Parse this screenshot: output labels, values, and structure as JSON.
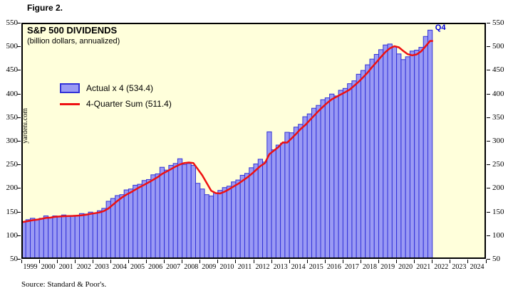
{
  "figure_label": "Figure 2.",
  "watermark": "yardeni.com",
  "annotation_last_bar": "Q4",
  "source": "Source: Standard & Poor's.",
  "legend": {
    "actual": {
      "label": "Actual x 4 (534.4)",
      "swatch": "box"
    },
    "four_quarter_sum": {
      "label": "4-Quarter Sum (511.4)",
      "swatch": "line"
    }
  },
  "colors": {
    "plot_background": "#ffffdb",
    "bar_fill": "#9a9af4",
    "bar_border": "#3232d8",
    "line": "#ee1111",
    "annotation": "#0000dd",
    "axis": "#000000"
  },
  "chart_data": {
    "type": "bar",
    "title": "S&P 500 DIVIDENDS",
    "subtitle": "(billion dollars, annualized)",
    "ylim": [
      50,
      550
    ],
    "y_ticks": [
      50,
      100,
      150,
      200,
      250,
      300,
      350,
      400,
      450,
      500,
      550
    ],
    "x_tick_labels": [
      "1999",
      "2000",
      "2001",
      "2002",
      "2003",
      "2004",
      "2005",
      "2006",
      "2007",
      "2008",
      "2009",
      "2010",
      "2011",
      "2012",
      "2013",
      "2014",
      "2015",
      "2016",
      "2017",
      "2018",
      "2019",
      "2020",
      "2021",
      "2022",
      "2023",
      "2024"
    ],
    "frequency": "quarterly",
    "bars_start": "1999Q1",
    "bars_end": "2021Q4",
    "grid": false,
    "legend_position": "upper-left",
    "series": [
      {
        "name": "Actual x 4",
        "type": "bar",
        "final_value": 534.4,
        "values": [
          129,
          133,
          136,
          134,
          136,
          141,
          138,
          141,
          139,
          143,
          140,
          142,
          141,
          146,
          145,
          149,
          147,
          152,
          157,
          172,
          178,
          184,
          186,
          196,
          198,
          206,
          208,
          216,
          218,
          228,
          230,
          244,
          238,
          248,
          252,
          262,
          250,
          252,
          248,
          210,
          198,
          186,
          183,
          190,
          195,
          201,
          204,
          213,
          217,
          227,
          231,
          243,
          251,
          261,
          255,
          319,
          281,
          291,
          295,
          318,
          317,
          329,
          335,
          351,
          357,
          369,
          375,
          387,
          391,
          399,
          395,
          407,
          411,
          421,
          427,
          441,
          449,
          461,
          473,
          483,
          493,
          503,
          505,
          500,
          484,
          472,
          478,
          490,
          492,
          498,
          521,
          534.4
        ]
      },
      {
        "name": "4-Quarter Sum",
        "type": "line",
        "final_value": 511.4,
        "values": [
          128.3,
          130.0,
          132.0,
          133.0,
          134.8,
          136.8,
          137.3,
          139.0,
          139.8,
          140.3,
          140.8,
          141.0,
          141.5,
          142.3,
          143.5,
          145.3,
          146.8,
          148.3,
          151.3,
          157.0,
          164.8,
          172.8,
          180.0,
          186.0,
          191.0,
          196.5,
          202.0,
          207.0,
          212.0,
          217.5,
          223.0,
          230.0,
          235.0,
          240.0,
          245.5,
          250.0,
          253.0,
          254.0,
          253.0,
          240.0,
          227.0,
          210.5,
          194.3,
          189.3,
          188.5,
          192.3,
          197.5,
          203.3,
          208.8,
          215.3,
          222.0,
          229.5,
          238.0,
          246.5,
          252.5,
          271.5,
          279.0,
          286.5,
          296.5,
          296.3,
          305.3,
          314.8,
          324.8,
          333.0,
          343.0,
          353.0,
          363.0,
          372.0,
          380.5,
          388.0,
          393.0,
          398.0,
          403.0,
          408.5,
          416.5,
          425.0,
          434.5,
          444.5,
          456.0,
          466.5,
          477.5,
          488.0,
          496.0,
          500.3,
          498.0,
          490.3,
          483.5,
          481.0,
          483.0,
          489.5,
          500.3,
          511.4
        ]
      }
    ]
  }
}
